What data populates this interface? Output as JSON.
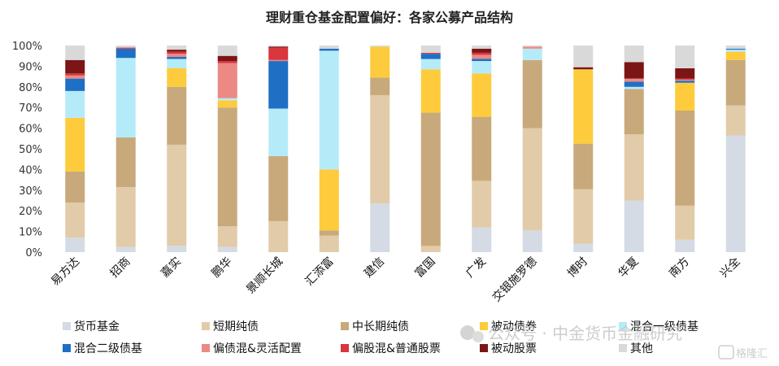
{
  "chart_data": {
    "type": "bar",
    "stacked": true,
    "title": "理财重仓基金配置偏好：各家公募产品结构",
    "ylim": [
      0,
      100
    ],
    "y_ticks": [
      "0%",
      "10%",
      "20%",
      "30%",
      "40%",
      "50%",
      "60%",
      "70%",
      "80%",
      "90%",
      "100%"
    ],
    "categories": [
      "易方达",
      "招商",
      "嘉实",
      "鹏华",
      "景顺长城",
      "汇添富",
      "建信",
      "富国",
      "广发",
      "交银施罗德",
      "博时",
      "华夏",
      "南方",
      "兴全"
    ],
    "legend_position": "bottom",
    "grid": false,
    "series": [
      {
        "name": "货币基金",
        "color": "#d4dbe5",
        "values": [
          7,
          2.5,
          3,
          2.5,
          0,
          0,
          23.5,
          0,
          12,
          10.5,
          4,
          25,
          6,
          56.5
        ]
      },
      {
        "name": "短期纯债",
        "color": "#e2cba9",
        "values": [
          17,
          29,
          49,
          10,
          15,
          8,
          52.5,
          3,
          22.5,
          49.5,
          26.5,
          32,
          16.5,
          14.5
        ]
      },
      {
        "name": "中长期纯债",
        "color": "#c8a97b",
        "values": [
          15,
          24,
          28,
          57.5,
          31.5,
          2.5,
          8.5,
          64.5,
          31,
          33,
          22,
          22,
          46,
          22
        ]
      },
      {
        "name": "被动债券",
        "color": "#fdcb3c",
        "values": [
          26,
          0,
          9,
          3.5,
          0,
          29.5,
          15,
          21,
          21,
          0,
          36,
          0,
          13.5,
          4
        ]
      },
      {
        "name": "混合一级债基",
        "color": "#b5ebf9",
        "values": [
          13,
          38.5,
          4.5,
          1,
          23,
          57.5,
          0,
          5,
          6,
          5.5,
          0,
          1,
          0,
          1
        ]
      },
      {
        "name": "混合二级债基",
        "color": "#1f6fc5",
        "values": [
          6,
          4.5,
          1,
          0,
          23,
          1,
          0,
          2.5,
          1,
          0,
          0,
          2.5,
          1,
          0.5
        ]
      },
      {
        "name": "偏债混&灵活配置",
        "color": "#ec8985",
        "values": [
          1.5,
          0,
          1.5,
          17,
          0.5,
          0,
          0,
          0,
          2,
          1,
          0,
          1.5,
          0.5,
          0
        ]
      },
      {
        "name": "偏股混&普通股票",
        "color": "#d9363e",
        "values": [
          1,
          0.5,
          1,
          1,
          6,
          0,
          0,
          0.5,
          1,
          0,
          0,
          0,
          0.5,
          0
        ]
      },
      {
        "name": "被动股票",
        "color": "#7b1516",
        "values": [
          6.5,
          0,
          1,
          2.5,
          0.5,
          0,
          0,
          0,
          2,
          0,
          1,
          8,
          5,
          0
        ]
      },
      {
        "name": "其他",
        "color": "#d9d9d9",
        "values": [
          7,
          1,
          2,
          5,
          0.5,
          1.5,
          0.5,
          3.5,
          1.5,
          0.5,
          10.5,
          8,
          11,
          1.5
        ]
      }
    ]
  },
  "watermark": {
    "text": "公众号 · 中金货币金融研究",
    "logo_text": "格隆汇"
  }
}
